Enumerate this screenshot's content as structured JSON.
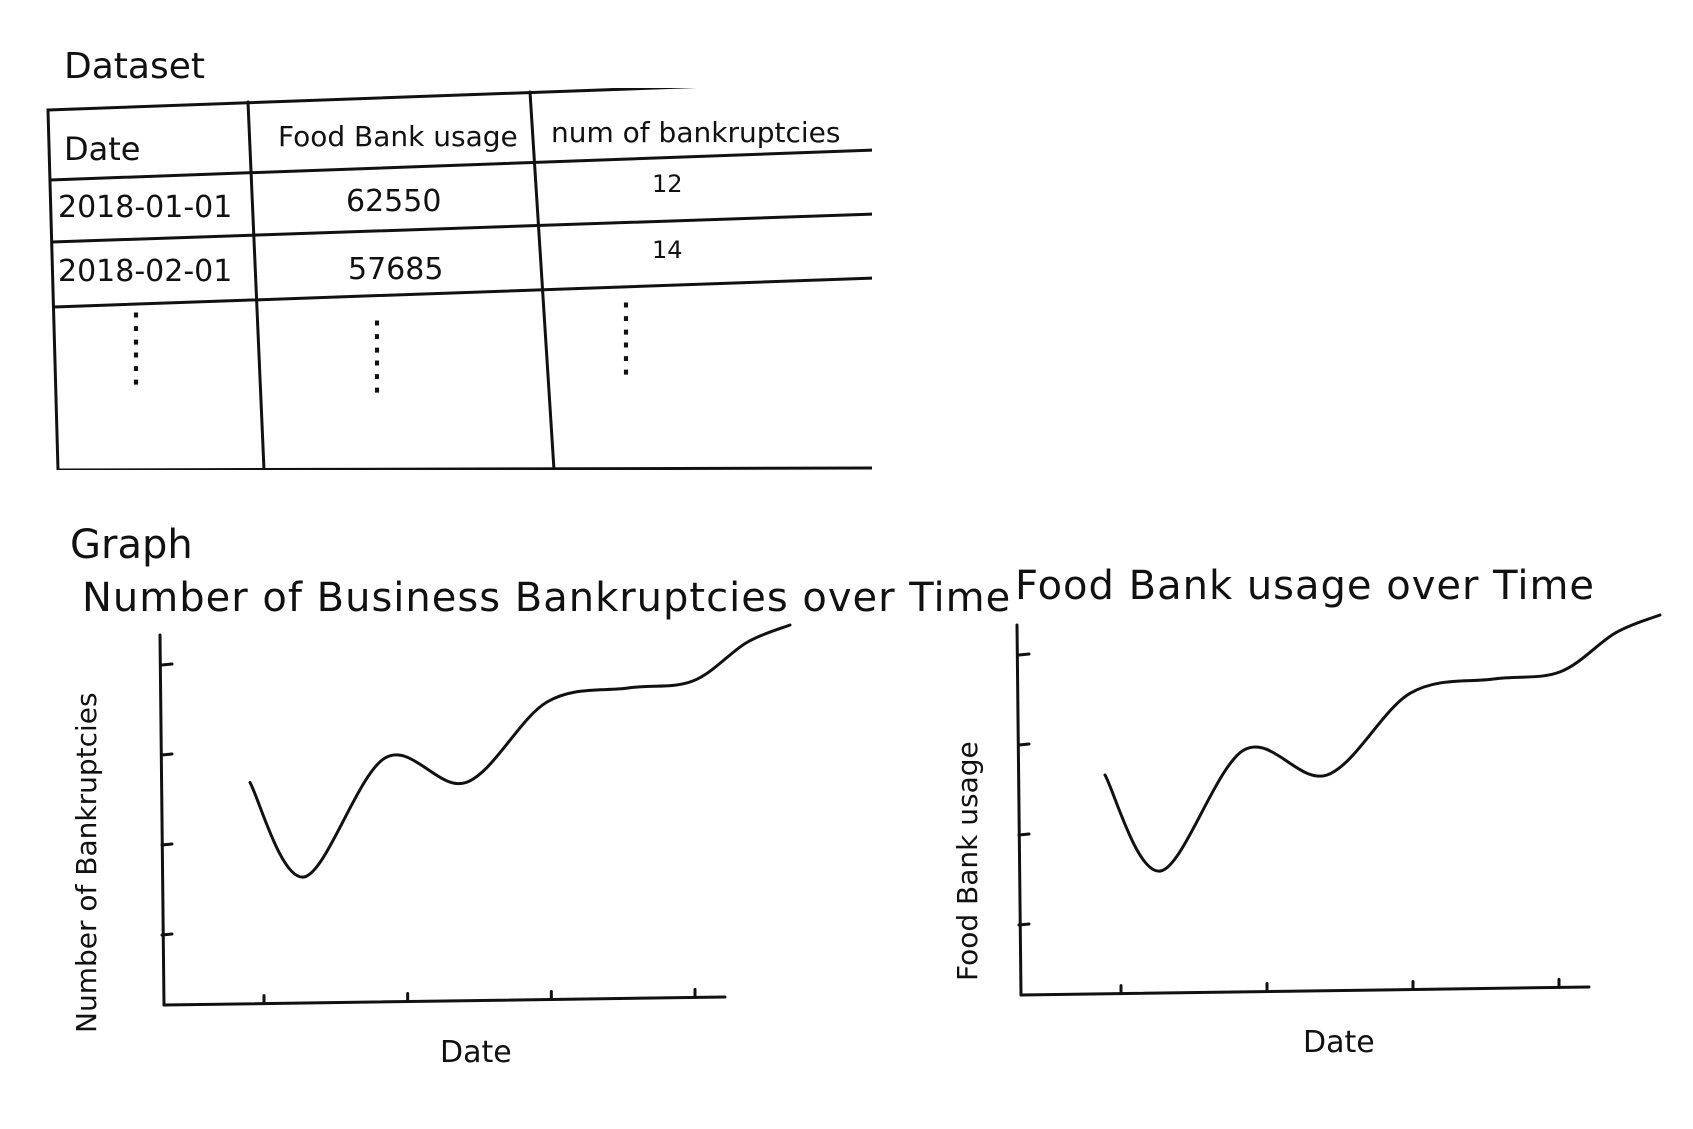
{
  "sections": {
    "dataset_heading": "Dataset",
    "graph_heading": "Graph"
  },
  "table": {
    "columns": [
      "Date",
      "Food Bank usage",
      "num of bankruptcies"
    ],
    "rows": [
      [
        "2018-01-01",
        "62550",
        "12"
      ],
      [
        "2018-02-01",
        "57685",
        "14"
      ]
    ],
    "ellipsis": "⋮"
  },
  "chart_data": [
    {
      "type": "line",
      "title": "Number of Business Bankruptcies over Time",
      "xlabel": "Date",
      "ylabel": "Number of Bankruptcies",
      "x_tick_count": 4,
      "y_tick_count": 4,
      "grid": false,
      "series": [
        {
          "x": [
            0,
            0.1,
            0.25,
            0.4,
            0.55,
            0.7,
            0.82,
            0.92,
            1.0
          ],
          "values": [
            0.55,
            0.28,
            0.62,
            0.55,
            0.78,
            0.82,
            0.84,
            0.95,
            1.0
          ]
        }
      ]
    },
    {
      "type": "line",
      "title": "Food Bank usage over Time",
      "xlabel": "Date",
      "ylabel": "Food Bank usage",
      "x_tick_count": 4,
      "y_tick_count": 4,
      "grid": false,
      "series": [
        {
          "x": [
            0,
            0.1,
            0.25,
            0.4,
            0.55,
            0.7,
            0.82,
            0.92,
            1.0
          ],
          "values": [
            0.55,
            0.28,
            0.62,
            0.55,
            0.78,
            0.82,
            0.84,
            0.95,
            1.0
          ]
        }
      ]
    }
  ]
}
